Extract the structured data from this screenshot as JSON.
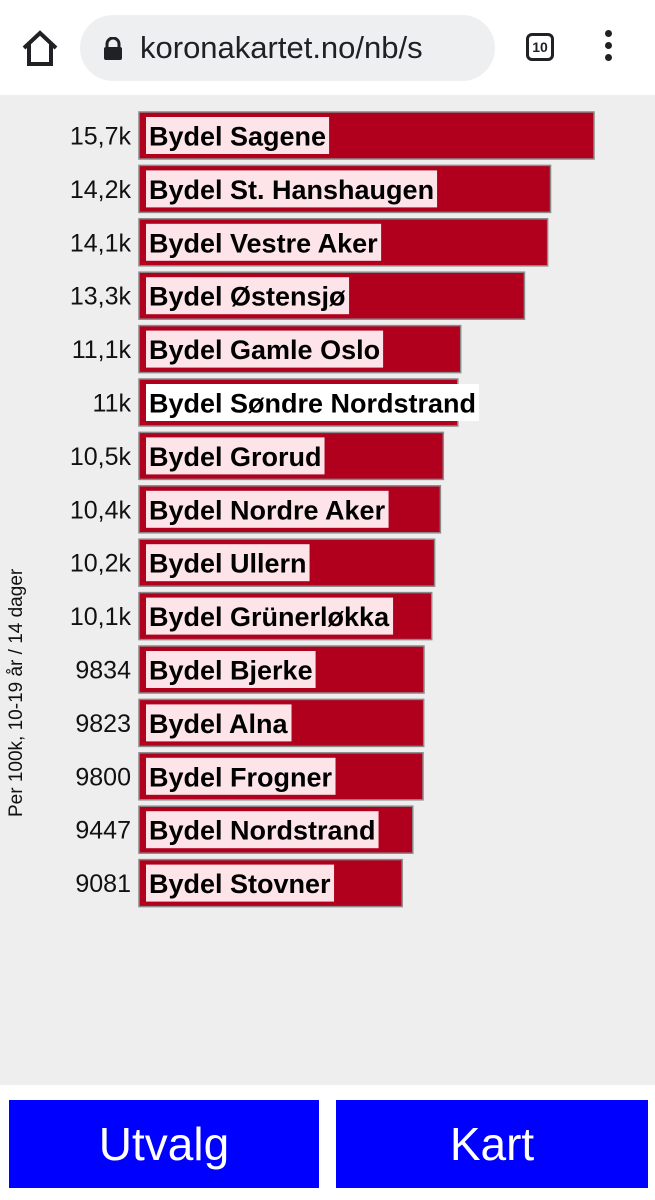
{
  "browser": {
    "url": "koronakartet.no/nb/s",
    "tab_count": "10"
  },
  "colors": {
    "bar_fill": "#b0001e",
    "label_bg": "#fde4e8",
    "button_bg": "#0000ff"
  },
  "chart_data": {
    "type": "bar",
    "orientation": "horizontal",
    "ylabel": "Per 100k, 10-19 år / 14 dager",
    "categories": [
      "Bydel Sagene",
      "Bydel St. Hanshaugen",
      "Bydel Vestre Aker",
      "Bydel Østensjø",
      "Bydel Gamle Oslo",
      "Bydel Søndre Nordstrand",
      "Bydel Grorud",
      "Bydel Nordre Aker",
      "Bydel Ullern",
      "Bydel Grünerløkka",
      "Bydel Bjerke",
      "Bydel Alna",
      "Bydel Frogner",
      "Bydel Nordstrand",
      "Bydel Stovner"
    ],
    "values": [
      15700,
      14200,
      14100,
      13300,
      11100,
      11000,
      10500,
      10400,
      10200,
      10100,
      9834,
      9823,
      9800,
      9447,
      9081
    ],
    "value_labels": [
      "15,7k",
      "14,2k",
      "14,1k",
      "13,3k",
      "11,1k",
      "11k",
      "10,5k",
      "10,4k",
      "10,2k",
      "10,1k",
      "9834",
      "9823",
      "9800",
      "9447",
      "9081"
    ],
    "xlim": [
      0,
      15700
    ]
  },
  "buttons": {
    "utvalg": "Utvalg",
    "kart": "Kart"
  }
}
